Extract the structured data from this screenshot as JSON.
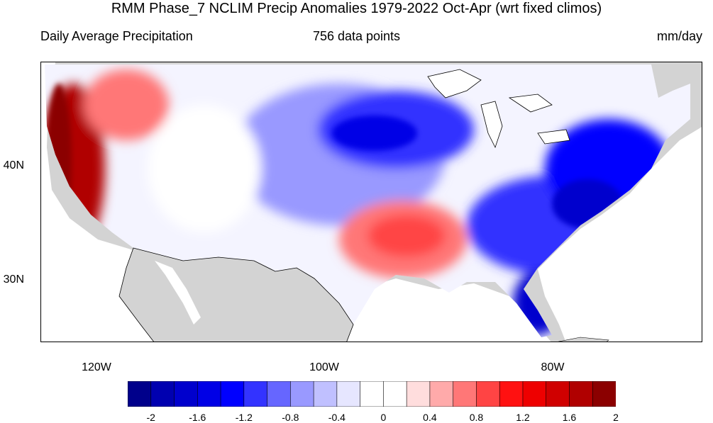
{
  "title": "RMM Phase_7 NCLIM Precip Anomalies 1979-2022 Oct-Apr (wrt fixed climos)",
  "subtitle_left": "Daily Average Precipitation",
  "subtitle_center": "756 data points",
  "subtitle_right": "mm/day",
  "lat_labels": [
    "40N",
    "30N"
  ],
  "lon_labels": [
    "120W",
    "100W",
    "80W"
  ],
  "colorbar": {
    "colors": [
      "#00008b",
      "#0000b0",
      "#0000cd",
      "#0000e6",
      "#0000ff",
      "#3333ff",
      "#6666ff",
      "#9999ff",
      "#c0c0ff",
      "#e6e6ff",
      "#ffffff",
      "#ffffff",
      "#ffdddd",
      "#ffaaaa",
      "#ff7777",
      "#ff4444",
      "#ff1111",
      "#ee0000",
      "#d00000",
      "#b00000",
      "#8b0000"
    ],
    "tick_labels": [
      "-2",
      "-1.6",
      "-1.2",
      "-0.8",
      "-0.4",
      "0",
      "0.4",
      "0.8",
      "1.2",
      "1.6",
      "2"
    ]
  },
  "colors": {
    "ocean_land_mask": "#d3d3d3",
    "strong_wet": "#b00000",
    "strong_dry": "#0000cd"
  }
}
